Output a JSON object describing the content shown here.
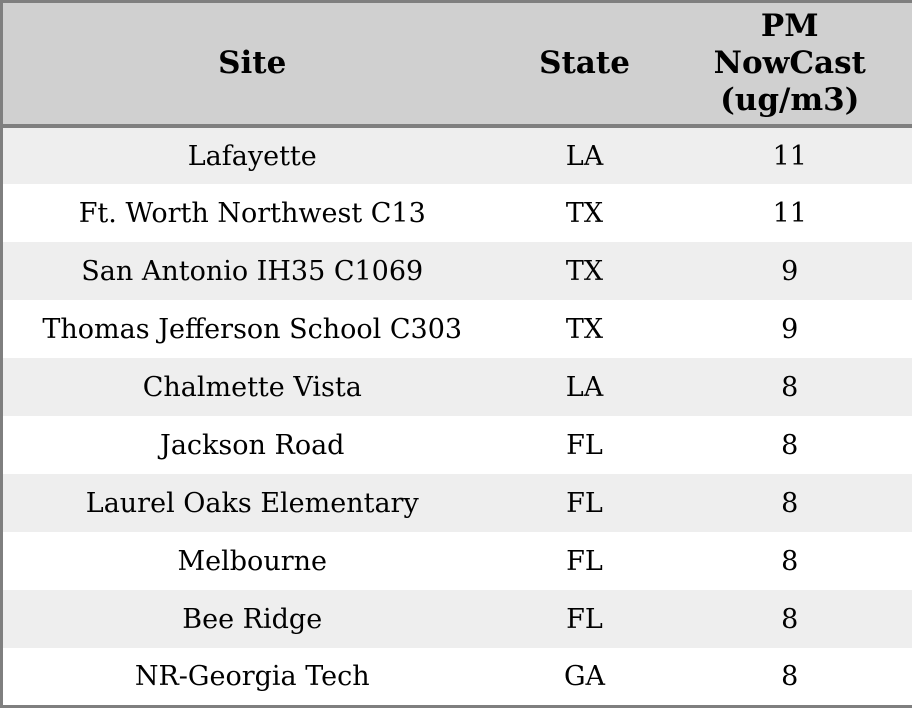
{
  "chart_data": {
    "type": "table",
    "columns": [
      "Site",
      "State",
      "PM NowCast (ug/m3)"
    ],
    "header_display": [
      "Site",
      "State",
      "PM\nNowCast\n(ug/m3)"
    ],
    "rows": [
      {
        "site": "Lafayette",
        "state": "LA",
        "pm_nowcast": 11
      },
      {
        "site": "Ft. Worth Northwest C13",
        "state": "TX",
        "pm_nowcast": 11
      },
      {
        "site": "San Antonio IH35 C1069",
        "state": "TX",
        "pm_nowcast": 9
      },
      {
        "site": "Thomas Jefferson School C303",
        "state": "TX",
        "pm_nowcast": 9
      },
      {
        "site": "Chalmette Vista",
        "state": "LA",
        "pm_nowcast": 8
      },
      {
        "site": "Jackson Road",
        "state": "FL",
        "pm_nowcast": 8
      },
      {
        "site": "Laurel Oaks Elementary",
        "state": "FL",
        "pm_nowcast": 8
      },
      {
        "site": "Melbourne",
        "state": "FL",
        "pm_nowcast": 8
      },
      {
        "site": "Bee Ridge",
        "state": "FL",
        "pm_nowcast": 8
      },
      {
        "site": "NR-Georgia Tech",
        "state": "GA",
        "pm_nowcast": 8
      }
    ],
    "layout": {
      "striped": true,
      "alignment": "center"
    }
  },
  "colors": {
    "header_background": "#d0d0d0",
    "row_stripe": "#eeeeee",
    "row_plain": "#ffffff",
    "border": "#7f7f7f",
    "text": "#000000"
  }
}
